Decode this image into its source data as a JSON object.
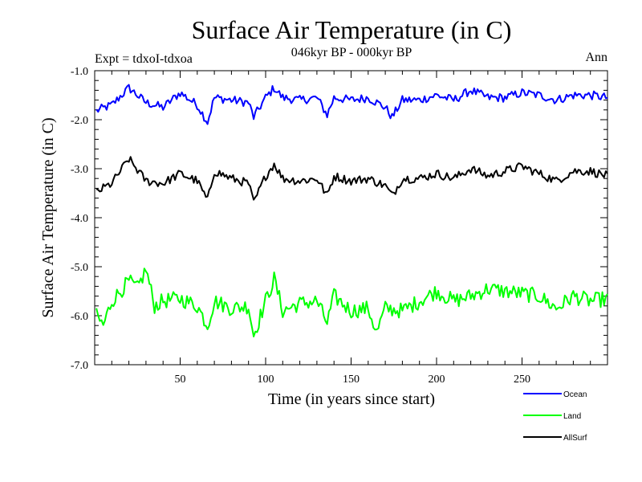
{
  "chart_data": {
    "type": "line",
    "title": "Surface Air Temperature (in C)",
    "subtitle": "046kyr BP - 000kyr BP",
    "experiment_label": "Expt = tdxoI-tdxoa",
    "season_label": "Ann",
    "xlabel": "Time (in years since start)",
    "ylabel": "Surface Air Temperature (in C)",
    "xlim": [
      0,
      300
    ],
    "ylim": [
      -7.0,
      -1.0
    ],
    "x_ticks": [
      50,
      100,
      150,
      200,
      250
    ],
    "x_tick_labels": [
      "50",
      "100",
      "150",
      "200",
      "250"
    ],
    "y_ticks": [
      -1.0,
      -2.0,
      -3.0,
      -4.0,
      -5.0,
      -6.0,
      -7.0
    ],
    "y_tick_labels": [
      "-1.0",
      "-2.0",
      "-3.0",
      "-4.0",
      "-5.0",
      "-6.0",
      "-7.0"
    ],
    "grid": false,
    "legend_position": "bottom-right",
    "series": [
      {
        "name": "Ocean",
        "color": "#0000ff",
        "x": [
          0,
          10,
          20,
          30,
          40,
          50,
          60,
          66,
          70,
          80,
          90,
          93,
          100,
          105,
          110,
          120,
          130,
          136,
          140,
          150,
          160,
          170,
          174,
          180,
          190,
          200,
          210,
          220,
          230,
          240,
          250,
          260,
          270,
          280,
          290,
          300
        ],
        "values": [
          -1.83,
          -1.7,
          -1.35,
          -1.65,
          -1.75,
          -1.45,
          -1.7,
          -2.05,
          -1.55,
          -1.6,
          -1.65,
          -1.95,
          -1.55,
          -1.35,
          -1.55,
          -1.6,
          -1.55,
          -1.9,
          -1.55,
          -1.6,
          -1.55,
          -1.75,
          -1.95,
          -1.6,
          -1.6,
          -1.5,
          -1.6,
          -1.4,
          -1.55,
          -1.55,
          -1.45,
          -1.5,
          -1.6,
          -1.5,
          -1.5,
          -1.55
        ]
      },
      {
        "name": "Land",
        "color": "#00ff00",
        "x": [
          0,
          5,
          10,
          20,
          25,
          30,
          35,
          40,
          50,
          60,
          66,
          70,
          80,
          90,
          93,
          100,
          105,
          110,
          120,
          130,
          136,
          140,
          150,
          160,
          165,
          170,
          180,
          190,
          200,
          210,
          220,
          230,
          240,
          250,
          260,
          270,
          280,
          290,
          300
        ],
        "values": [
          -5.95,
          -6.2,
          -5.7,
          -5.3,
          -5.45,
          -5.05,
          -5.8,
          -5.7,
          -5.65,
          -5.8,
          -6.2,
          -5.7,
          -5.85,
          -5.8,
          -6.4,
          -5.7,
          -5.25,
          -5.9,
          -5.75,
          -5.7,
          -6.15,
          -5.6,
          -5.9,
          -5.85,
          -6.35,
          -5.85,
          -5.9,
          -5.7,
          -5.5,
          -5.7,
          -5.6,
          -5.45,
          -5.5,
          -5.55,
          -5.6,
          -5.85,
          -5.6,
          -5.7,
          -5.65
        ]
      },
      {
        "name": "AllSurf",
        "color": "#000000",
        "x": [
          0,
          10,
          20,
          30,
          40,
          50,
          60,
          66,
          70,
          80,
          90,
          93,
          100,
          105,
          110,
          120,
          130,
          136,
          140,
          150,
          160,
          170,
          174,
          180,
          190,
          200,
          210,
          220,
          230,
          240,
          250,
          260,
          270,
          280,
          290,
          300
        ],
        "values": [
          -3.5,
          -3.3,
          -2.8,
          -3.25,
          -3.3,
          -3.1,
          -3.25,
          -3.65,
          -3.05,
          -3.2,
          -3.3,
          -3.7,
          -3.15,
          -2.9,
          -3.2,
          -3.25,
          -3.2,
          -3.55,
          -3.15,
          -3.25,
          -3.2,
          -3.35,
          -3.55,
          -3.2,
          -3.2,
          -3.1,
          -3.2,
          -3.0,
          -3.15,
          -3.05,
          -2.95,
          -3.1,
          -3.25,
          -3.05,
          -3.05,
          -3.15
        ]
      }
    ]
  }
}
